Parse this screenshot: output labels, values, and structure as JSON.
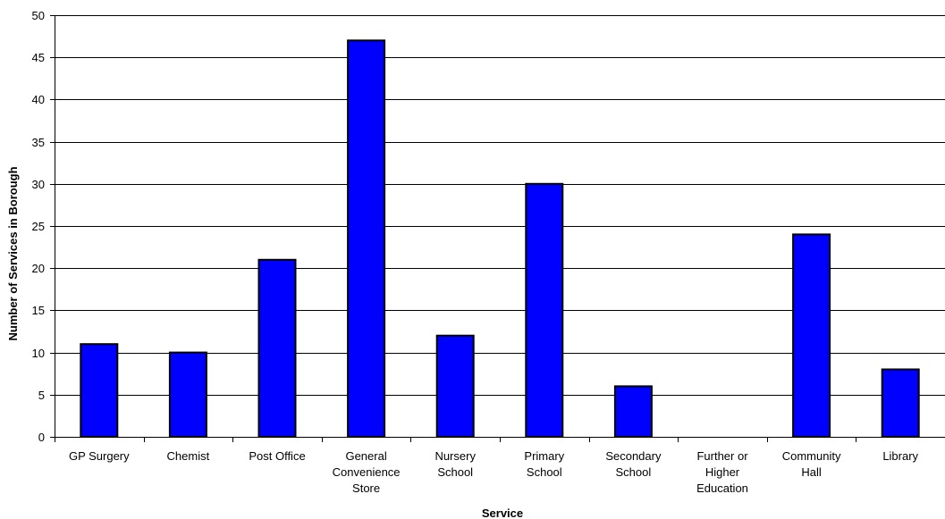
{
  "chart_data": {
    "type": "bar",
    "title": "",
    "xlabel": "Service",
    "ylabel": "Number of Services in Borough",
    "ylim": [
      0,
      50
    ],
    "y_ticks": [
      0,
      5,
      10,
      15,
      20,
      25,
      30,
      35,
      40,
      45,
      50
    ],
    "grid": true,
    "legend": "none",
    "bar_color": "#0000ff",
    "categories": [
      [
        "GP Surgery"
      ],
      [
        "Chemist"
      ],
      [
        "Post Office"
      ],
      [
        "General",
        "Convenience",
        "Store"
      ],
      [
        "Nursery",
        "School"
      ],
      [
        "Primary",
        "School"
      ],
      [
        "Secondary",
        "School"
      ],
      [
        "Further or",
        "Higher",
        "Education"
      ],
      [
        "Community",
        "Hall"
      ],
      [
        "Library"
      ]
    ],
    "values": [
      11,
      10,
      21,
      47,
      12,
      30,
      6,
      0,
      24,
      8
    ]
  }
}
